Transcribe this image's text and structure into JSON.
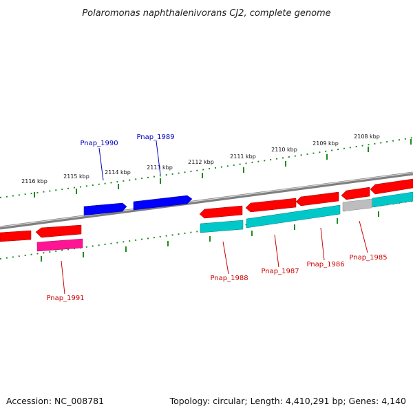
{
  "title": "Polaromonas naphthalenivorans CJ2, complete genome",
  "footer": {
    "accession": "Accession: NC_008781",
    "summary": "Topology: circular; Length: 4,410,291 bp; Genes: 4,140"
  },
  "colors": {
    "backbone": "#7f7f7f",
    "tick": "#1f8a1f",
    "forward_cds": "#ff0000",
    "reverse_gene": "#0000ff",
    "rna_like": "#00c8c8",
    "pseudo_like": "#ff1493",
    "other": "#bdbdbd",
    "label_forward": "#cc0000",
    "label_reverse": "#0000bb"
  },
  "scale_ticks": [
    {
      "label": "2116 kbp"
    },
    {
      "label": "2115 kbp"
    },
    {
      "label": "2114 kbp"
    },
    {
      "label": "2113 kbp"
    },
    {
      "label": "2112 kbp"
    },
    {
      "label": "2111 kbp"
    },
    {
      "label": "2110 kbp"
    },
    {
      "label": "2109 kbp"
    },
    {
      "label": "2108 kbp"
    }
  ],
  "gene_labels": [
    {
      "label": "Pnap_1990",
      "strand": "reverse"
    },
    {
      "label": "Pnap_1989",
      "strand": "reverse"
    },
    {
      "label": "Pnap_1991",
      "strand": "forward"
    },
    {
      "label": "Pnap_1988",
      "strand": "forward"
    },
    {
      "label": "Pnap_1987",
      "strand": "forward"
    },
    {
      "label": "Pnap_1986",
      "strand": "forward"
    },
    {
      "label": "Pnap_1985",
      "strand": "forward"
    }
  ]
}
